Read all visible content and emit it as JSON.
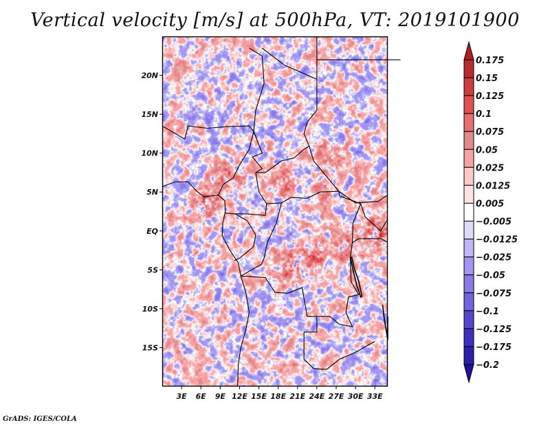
{
  "chart_data": {
    "type": "heatmap",
    "title": "Vertical velocity [m/s] at 500hPa, VT: 2019101900",
    "variable": "Vertical velocity",
    "units": "m/s",
    "level": "500hPa",
    "valid_time": "2019101900",
    "projection": "lat-lon",
    "xlabel": "",
    "ylabel": "",
    "lon_range": [
      0,
      35
    ],
    "lat_range": [
      -20,
      25
    ],
    "x_ticks": [
      3,
      6,
      9,
      12,
      15,
      18,
      21,
      24,
      27,
      30,
      33
    ],
    "x_tick_labels": [
      "3E",
      "6E",
      "9E",
      "12E",
      "15E",
      "18E",
      "21E",
      "24E",
      "27E",
      "30E",
      "33E"
    ],
    "y_ticks": [
      20,
      15,
      10,
      5,
      0,
      -5,
      -10,
      -15
    ],
    "y_tick_labels": [
      "20N",
      "15N",
      "10N",
      "5N",
      "EQ",
      "5S",
      "10S",
      "15S"
    ],
    "colorbar": {
      "orientation": "vertical",
      "placement": "right",
      "extend": "both",
      "levels": [
        0.175,
        0.15,
        0.125,
        0.1,
        0.075,
        0.05,
        0.025,
        0.0125,
        0.005,
        -0.005,
        -0.0125,
        -0.025,
        -0.05,
        -0.075,
        -0.1,
        -0.125,
        -0.175,
        -0.2
      ],
      "level_labels": [
        "0.175",
        "0.15",
        "0.125",
        "0.1",
        "0.075",
        "0.05",
        "0.025",
        "0.0125",
        "0.005",
        "−0.005",
        "−0.0125",
        "−0.025",
        "−0.05",
        "−0.075",
        "−0.1",
        "−0.125",
        "−0.175",
        "−0.2"
      ],
      "colors_top_to_bottom": [
        "#ad1f23",
        "#b92b2f",
        "#cc3c40",
        "#e25055",
        "#e86e72",
        "#e38a8d",
        "#f5a3a5",
        "#fcc9c9",
        "#fde4e4",
        "#ffffff",
        "#dcdcf8",
        "#c0b8f6",
        "#a396f3",
        "#8a7ae8",
        "#7165dd",
        "#5447cf",
        "#3e31bf",
        "#2b21a8",
        "#210f9e"
      ],
      "over_color": "#ad1f23",
      "under_color": "#210f9e"
    },
    "field_description": "Mottled field of alternating weak ascent (red) and descent (blue); strongest positive values near Cameroon coast (~3-9E, 2-6N), central Congo basin (~18-24E, 4-6S) and East African Rift lakes (~30-35E, 0-5S).",
    "hotspots": [
      {
        "lon": 7,
        "lat": 3.5,
        "value": 0.15
      },
      {
        "lon": 10,
        "lat": 7,
        "value": 0.125
      },
      {
        "lon": 19,
        "lat": 6.5,
        "value": 0.125
      },
      {
        "lon": 25,
        "lat": 5,
        "value": 0.1
      },
      {
        "lon": 20,
        "lat": -4.5,
        "value": 0.15
      },
      {
        "lon": 23.5,
        "lat": -3.5,
        "value": 0.125
      },
      {
        "lon": 28,
        "lat": -1.5,
        "value": 0.125
      },
      {
        "lon": 33.5,
        "lat": 0,
        "value": 0.175
      },
      {
        "lon": 26,
        "lat": 9.5,
        "value": 0.1
      }
    ]
  },
  "footer": {
    "credit": "GrADS: IGES/COLA"
  }
}
